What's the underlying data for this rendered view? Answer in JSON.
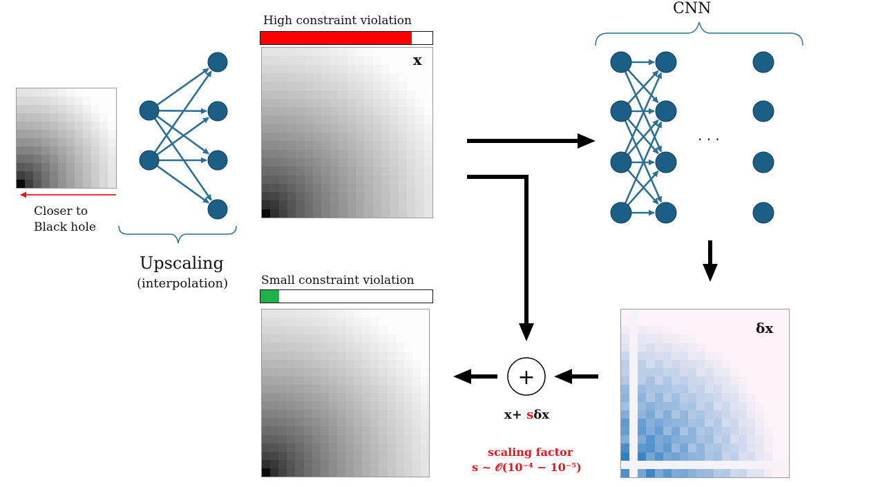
{
  "diagram": {
    "input_note": {
      "line1": "Closer to",
      "line2": "Black hole"
    },
    "upscaling": {
      "title": "Upscaling",
      "subtitle": "(interpolation)"
    },
    "high_violation": {
      "label": "High constraint violation",
      "fill_fraction": 0.88,
      "color": "#ff0000"
    },
    "small_violation": {
      "label": "Small constraint violation",
      "fill_fraction": 0.11,
      "color": "#1fb24a"
    },
    "x_label": "x",
    "cnn_label": "CNN",
    "ellipsis": "· · ·",
    "delta_label": "δx",
    "formula": {
      "prefix": "x+ ",
      "s": "s",
      "suffix": "δx"
    },
    "scaling": {
      "line1": "scaling factor",
      "line2": "s ~ 𝒪(10⁻⁴ − 10⁻⁵)"
    },
    "plus_symbol": "+",
    "colors": {
      "node": "#1b5e86",
      "edge": "#2b6f96",
      "accent_red": "#e8141e",
      "arrow": "#000000"
    }
  }
}
